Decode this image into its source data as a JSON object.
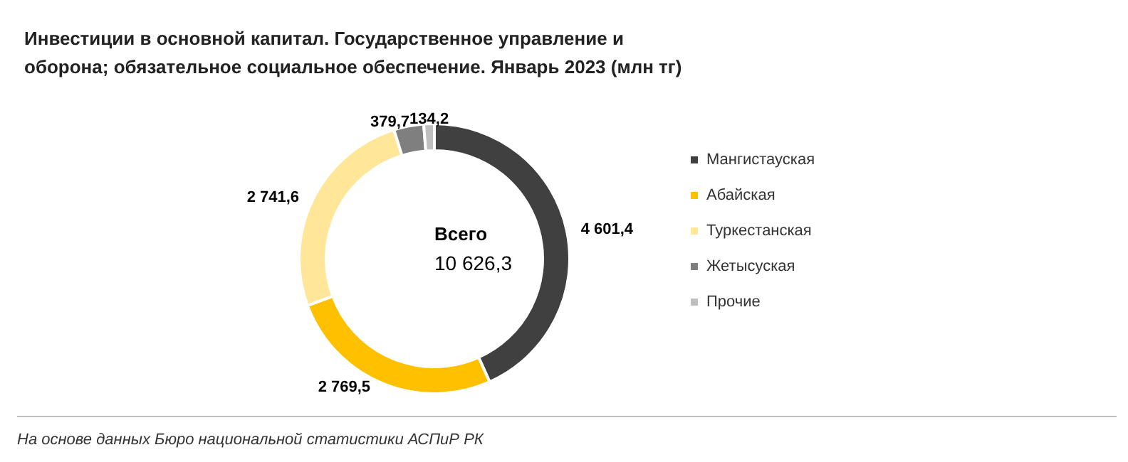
{
  "chart_data": {
    "type": "donut",
    "title": "Инвестиции в основной капитал. Государственное управление и оборона; обязательное социальное обеспечение. Январь 2023 (млн тг)",
    "categories": [
      "Мангистауская",
      "Абайская",
      "Туркестанская",
      "Жетысуская",
      "Прочие"
    ],
    "values": [
      4601.4,
      2769.5,
      2741.6,
      379.7,
      134.2
    ],
    "colors": [
      "#404040",
      "#ffc000",
      "#ffe699",
      "#7f7f7f",
      "#bfbfbf"
    ],
    "value_labels": [
      "4 601,4",
      "2 769,5",
      "2 741,6",
      "379,7",
      "134,2"
    ],
    "legend": "right",
    "annotations": [
      "Всего",
      "10 626,3",
      "На основе данных Бюро национальной статистики АСПиР РК"
    ]
  }
}
